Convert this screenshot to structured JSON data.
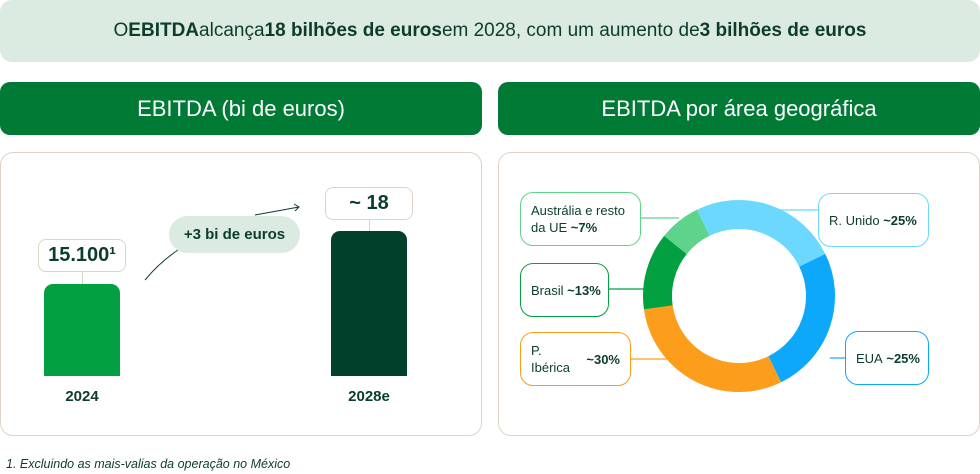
{
  "banner": {
    "p1": "O ",
    "b1": "EBITDA",
    "p2": " alcança ",
    "b2": "18 bilhões de euros",
    "p3": " em 2028, com um aumento de ",
    "b3": "3 bilhões de euros"
  },
  "left_header": "EBITDA (bi de euros)",
  "right_header": "EBITDA por área geográfica",
  "footnote": "1. Excluindo as mais-valias da operação no México",
  "chart_data": [
    {
      "type": "bar",
      "title": "EBITDA (bi de euros)",
      "categories": [
        "2024",
        "2028e"
      ],
      "values": [
        15.1,
        18
      ],
      "data_labels": [
        "15.100¹",
        "~ 18"
      ],
      "annotation": "+3 bi de euros",
      "colors": [
        "#02a040",
        "#01402a"
      ]
    },
    {
      "type": "pie",
      "title": "EBITDA por área geográfica",
      "donut": true,
      "slices": [
        {
          "label": "R. Unido",
          "value_label": "~25%",
          "value": 25,
          "color": "#6dd8fe"
        },
        {
          "label": "EUA",
          "value_label": "~25%",
          "value": 25,
          "color": "#0ea8fb"
        },
        {
          "label": "P. Ibérica",
          "value_label": "~30%",
          "value": 30,
          "color": "#fd9d1c"
        },
        {
          "label": "Brasil",
          "value_label": "~13%",
          "value": 13,
          "color": "#02a040"
        },
        {
          "label": "Austrália e resto da UE",
          "value_label": "~7%",
          "value": 7,
          "color": "#5dd38c"
        }
      ]
    }
  ]
}
